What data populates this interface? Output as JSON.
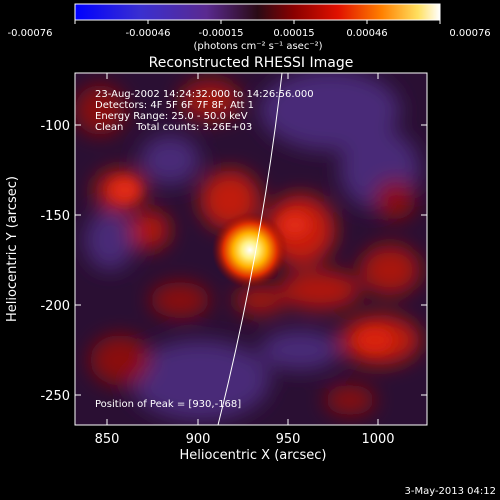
{
  "colorbar": {
    "ticks": [
      "-0.00076",
      "-0.00046",
      "-0.00015",
      "0.00015",
      "0.00046",
      "0.00076"
    ],
    "units": "(photons cm⁻² s⁻¹ asec⁻²)"
  },
  "plot": {
    "title": "Reconstructed RHESSI Image",
    "xlabel": "Heliocentric X (arcsec)",
    "ylabel": "Heliocentric Y (arcsec)",
    "x_ticks": [
      "850",
      "900",
      "950",
      "1000"
    ],
    "y_ticks": [
      "-100",
      "-150",
      "-200",
      "-250"
    ]
  },
  "info": {
    "line1": "23-Aug-2002 14:24:32.000 to 14:26:56.000",
    "line2": "Detectors: 4F 5F 6F 7F 8F, Att 1",
    "line3": "Energy Range: 25.0 - 50.0 keV",
    "line4": "Clean    Total counts: 3.26E+03",
    "peak": "Position of Peak = [930,-168]"
  },
  "footer": {
    "date": "3-May-2013 04:12"
  }
}
